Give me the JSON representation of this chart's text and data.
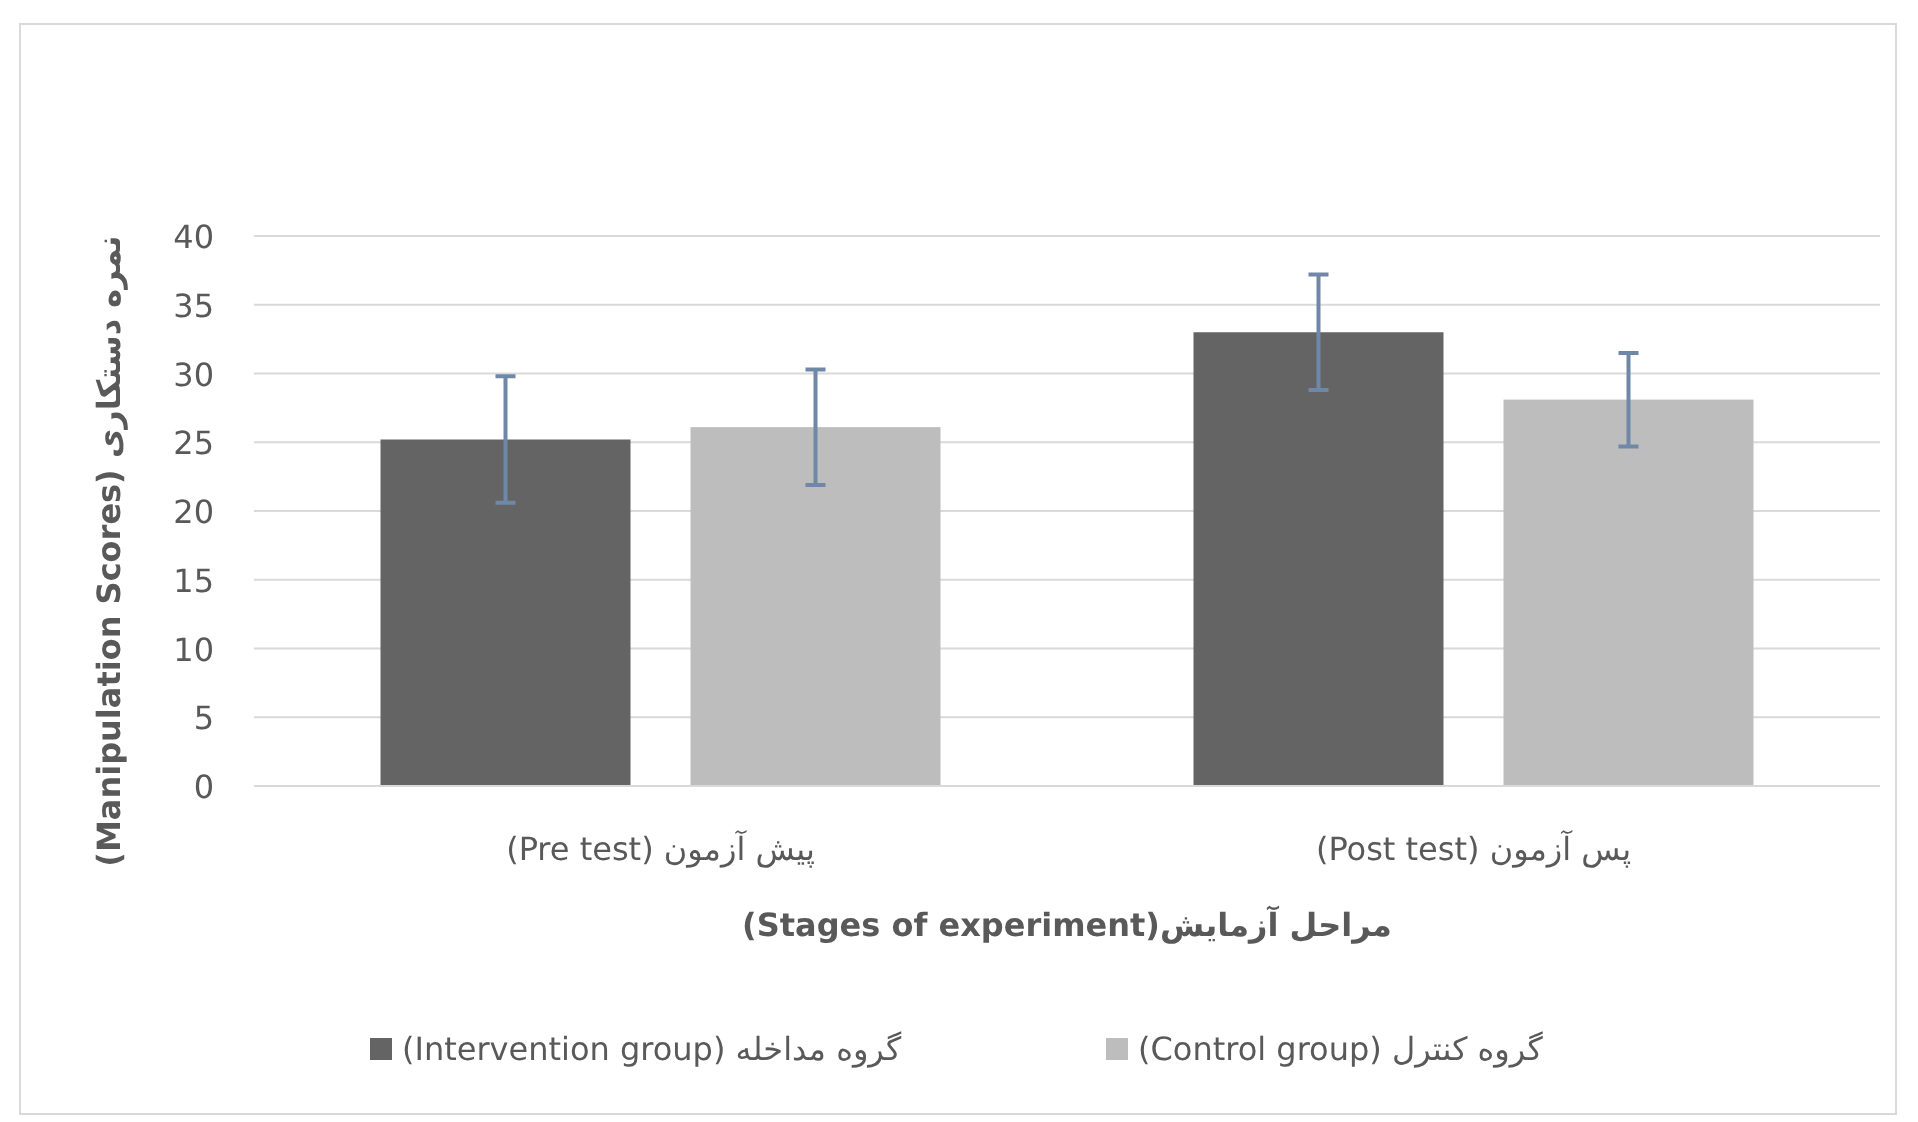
{
  "chart_data": {
    "type": "bar",
    "xlabel": "مراحل آزمایش(Stages of experiment)",
    "ylabel": "نمره دستکاری (Manipulation Scores)",
    "categories": [
      "پیش آزمون (Pre test)",
      "پس آزمون (Post test)"
    ],
    "series": [
      {
        "name": "گروه مداخله (Intervention group)",
        "color": "#646464",
        "values": [
          25.2,
          33.0
        ],
        "errors": [
          4.6,
          4.2
        ]
      },
      {
        "name": "گروه کنترل (Control group)",
        "color": "#bdbdbd",
        "values": [
          26.1,
          28.1
        ],
        "errors": [
          4.2,
          3.4
        ]
      }
    ],
    "ylim": [
      0,
      40
    ],
    "yticks": [
      0,
      5,
      10,
      15,
      20,
      25,
      30,
      35,
      40
    ],
    "grid": "y",
    "legend": "bottom"
  }
}
